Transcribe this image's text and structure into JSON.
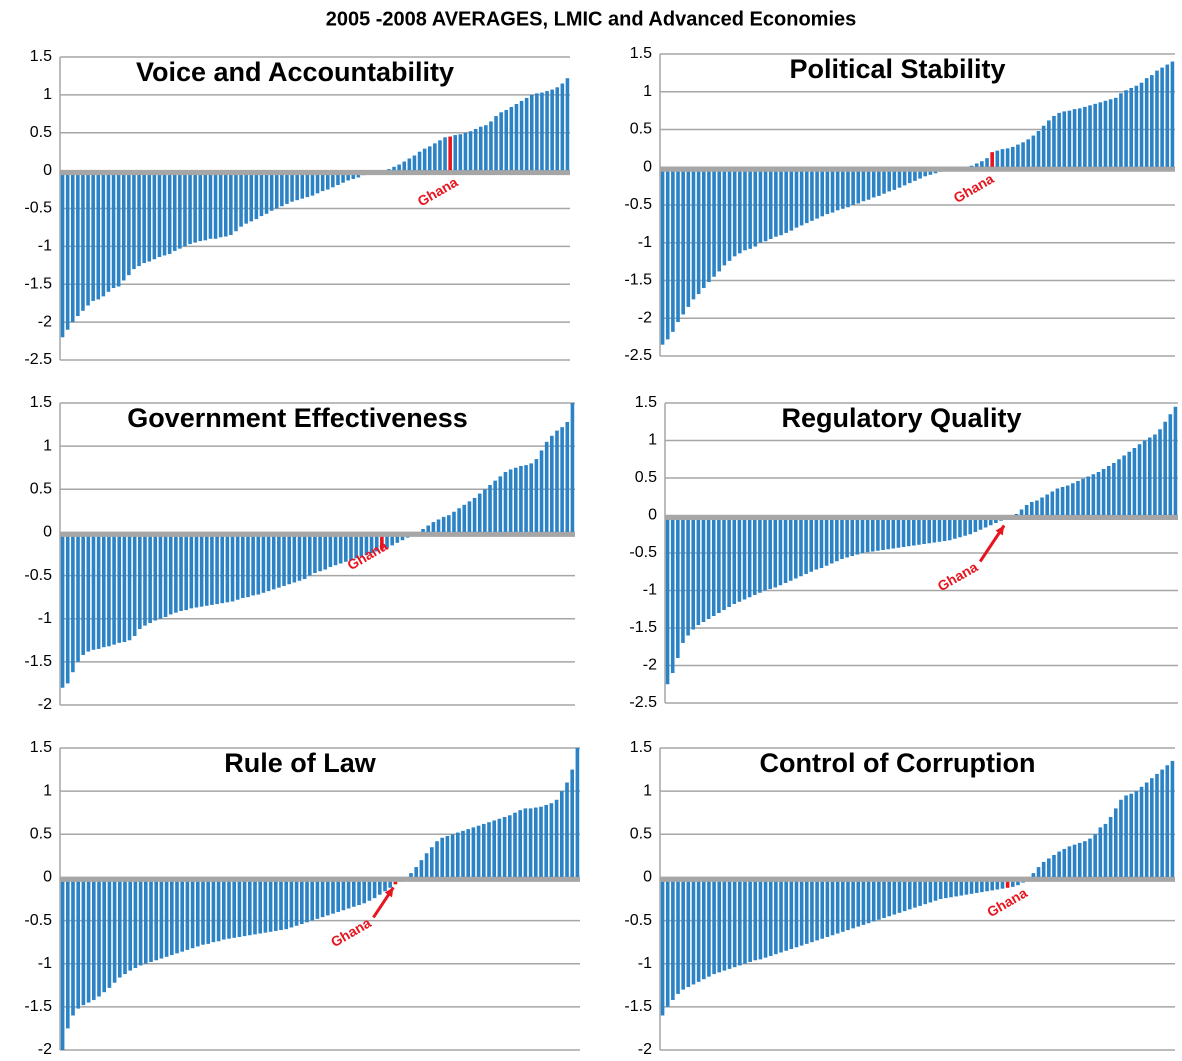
{
  "title": "2005 -2008 AVERAGES, LMIC and Advanced Economies",
  "chart_data": [
    {
      "type": "bar",
      "title": "Voice and Accountability",
      "color": "#2b83c6",
      "grid": true,
      "ylim": [
        -2.5,
        1.5
      ],
      "yticks": [
        1.5,
        1,
        0.5,
        0,
        -0.5,
        -1,
        -1.5,
        -2,
        -2.5
      ],
      "highlight": {
        "index": 76,
        "color": "#e8141e",
        "label": "Ghana"
      },
      "values": [
        -2.2,
        -2.1,
        -2.0,
        -1.92,
        -1.85,
        -1.78,
        -1.72,
        -1.7,
        -1.66,
        -1.6,
        -1.55,
        -1.53,
        -1.45,
        -1.38,
        -1.3,
        -1.26,
        -1.22,
        -1.2,
        -1.17,
        -1.14,
        -1.12,
        -1.1,
        -1.06,
        -1.03,
        -1.0,
        -0.97,
        -0.95,
        -0.93,
        -0.92,
        -0.9,
        -0.9,
        -0.88,
        -0.87,
        -0.85,
        -0.8,
        -0.74,
        -0.7,
        -0.67,
        -0.64,
        -0.6,
        -0.57,
        -0.53,
        -0.5,
        -0.47,
        -0.44,
        -0.41,
        -0.39,
        -0.37,
        -0.35,
        -0.33,
        -0.3,
        -0.27,
        -0.25,
        -0.22,
        -0.19,
        -0.16,
        -0.13,
        -0.11,
        -0.09,
        -0.06,
        -0.04,
        -0.03,
        -0.02,
        -0.01,
        0.02,
        0.05,
        0.08,
        0.12,
        0.16,
        0.2,
        0.25,
        0.29,
        0.32,
        0.36,
        0.4,
        0.44,
        0.45,
        0.47,
        0.48,
        0.5,
        0.52,
        0.55,
        0.58,
        0.6,
        0.65,
        0.72,
        0.77,
        0.8,
        0.84,
        0.88,
        0.92,
        0.96,
        1.0,
        1.02,
        1.03,
        1.05,
        1.07,
        1.1,
        1.15,
        1.22
      ]
    },
    {
      "type": "bar",
      "title": "Political Stability",
      "color": "#2b83c6",
      "grid": true,
      "ylim": [
        -2.5,
        1.5
      ],
      "yticks": [
        1.5,
        1,
        0.5,
        0,
        -0.5,
        -1,
        -1.5,
        -2,
        -2.5
      ],
      "highlight": {
        "index": 64,
        "color": "#e8141e",
        "label": "Ghana"
      },
      "values": [
        -2.35,
        -2.28,
        -2.18,
        -2.05,
        -1.95,
        -1.85,
        -1.75,
        -1.68,
        -1.6,
        -1.52,
        -1.45,
        -1.38,
        -1.3,
        -1.24,
        -1.18,
        -1.14,
        -1.1,
        -1.08,
        -1.05,
        -1.0,
        -0.98,
        -0.95,
        -0.92,
        -0.9,
        -0.87,
        -0.84,
        -0.8,
        -0.77,
        -0.74,
        -0.71,
        -0.68,
        -0.65,
        -0.62,
        -0.6,
        -0.57,
        -0.55,
        -0.53,
        -0.5,
        -0.48,
        -0.45,
        -0.43,
        -0.4,
        -0.38,
        -0.35,
        -0.32,
        -0.3,
        -0.27,
        -0.24,
        -0.21,
        -0.18,
        -0.15,
        -0.12,
        -0.1,
        -0.08,
        -0.06,
        -0.05,
        -0.04,
        -0.03,
        -0.02,
        -0.01,
        0.02,
        0.05,
        0.08,
        0.12,
        0.2,
        0.22,
        0.24,
        0.25,
        0.27,
        0.3,
        0.33,
        0.37,
        0.42,
        0.48,
        0.55,
        0.62,
        0.68,
        0.72,
        0.74,
        0.75,
        0.77,
        0.78,
        0.8,
        0.82,
        0.84,
        0.86,
        0.88,
        0.9,
        0.92,
        0.98,
        1.02,
        1.05,
        1.08,
        1.12,
        1.18,
        1.22,
        1.28,
        1.32,
        1.36,
        1.4
      ]
    },
    {
      "type": "bar",
      "title": "Government Effectiveness",
      "color": "#2b83c6",
      "grid": true,
      "ylim": [
        -2,
        1.5
      ],
      "yticks": [
        1.5,
        1,
        0.5,
        0,
        -0.5,
        -1,
        -1.5,
        -2
      ],
      "highlight": {
        "index": 62,
        "color": "#e8141e",
        "label": "Ghana"
      },
      "values": [
        -1.8,
        -1.75,
        -1.62,
        -1.5,
        -1.42,
        -1.38,
        -1.36,
        -1.35,
        -1.33,
        -1.32,
        -1.3,
        -1.28,
        -1.27,
        -1.25,
        -1.2,
        -1.12,
        -1.08,
        -1.05,
        -1.02,
        -1.0,
        -0.98,
        -0.95,
        -0.93,
        -0.91,
        -0.9,
        -0.88,
        -0.87,
        -0.86,
        -0.85,
        -0.84,
        -0.83,
        -0.82,
        -0.81,
        -0.8,
        -0.78,
        -0.76,
        -0.75,
        -0.73,
        -0.72,
        -0.7,
        -0.68,
        -0.66,
        -0.64,
        -0.62,
        -0.6,
        -0.58,
        -0.56,
        -0.54,
        -0.5,
        -0.47,
        -0.45,
        -0.43,
        -0.4,
        -0.38,
        -0.36,
        -0.34,
        -0.32,
        -0.3,
        -0.28,
        -0.26,
        -0.24,
        -0.22,
        -0.2,
        -0.18,
        -0.15,
        -0.12,
        -0.09,
        -0.06,
        -0.03,
        0.0,
        0.04,
        0.08,
        0.12,
        0.15,
        0.18,
        0.2,
        0.24,
        0.28,
        0.32,
        0.36,
        0.4,
        0.45,
        0.5,
        0.55,
        0.6,
        0.65,
        0.7,
        0.73,
        0.75,
        0.77,
        0.78,
        0.8,
        0.85,
        0.95,
        1.05,
        1.12,
        1.18,
        1.22,
        1.28,
        1.5
      ]
    },
    {
      "type": "bar",
      "title": "Regulatory  Quality",
      "color": "#2b83c6",
      "grid": true,
      "ylim": [
        -2.5,
        1.5
      ],
      "yticks": [
        1.5,
        1,
        0.5,
        0,
        -0.5,
        -1,
        -1.5,
        -2,
        -2.5
      ],
      "highlight": {
        "index": 66,
        "color": "#e8141e",
        "label": "Ghana"
      },
      "values": [
        -2.25,
        -2.1,
        -1.9,
        -1.7,
        -1.6,
        -1.52,
        -1.46,
        -1.42,
        -1.38,
        -1.34,
        -1.3,
        -1.26,
        -1.22,
        -1.18,
        -1.15,
        -1.12,
        -1.09,
        -1.06,
        -1.03,
        -1.0,
        -0.98,
        -0.96,
        -0.93,
        -0.9,
        -0.87,
        -0.84,
        -0.81,
        -0.78,
        -0.75,
        -0.72,
        -0.7,
        -0.67,
        -0.64,
        -0.61,
        -0.58,
        -0.56,
        -0.54,
        -0.52,
        -0.5,
        -0.49,
        -0.48,
        -0.47,
        -0.46,
        -0.45,
        -0.44,
        -0.43,
        -0.42,
        -0.41,
        -0.4,
        -0.39,
        -0.38,
        -0.37,
        -0.36,
        -0.35,
        -0.34,
        -0.33,
        -0.31,
        -0.29,
        -0.27,
        -0.25,
        -0.22,
        -0.19,
        -0.16,
        -0.13,
        -0.1,
        -0.07,
        -0.05,
        -0.03,
        0.02,
        0.08,
        0.14,
        0.18,
        0.2,
        0.24,
        0.28,
        0.32,
        0.36,
        0.38,
        0.4,
        0.43,
        0.46,
        0.49,
        0.52,
        0.55,
        0.58,
        0.62,
        0.66,
        0.7,
        0.75,
        0.8,
        0.85,
        0.9,
        0.95,
        1.0,
        1.04,
        1.08,
        1.15,
        1.25,
        1.35,
        1.45
      ]
    },
    {
      "type": "bar",
      "title": "Rule of Law",
      "color": "#2b83c6",
      "grid": true,
      "ylim": [
        -2,
        1.5
      ],
      "yticks": [
        1.5,
        1,
        0.5,
        0,
        -0.5,
        -1,
        -1.5,
        -2
      ],
      "highlight": {
        "index": 64,
        "color": "#e8141e",
        "label": "Ghana"
      },
      "values": [
        -2.0,
        -1.75,
        -1.6,
        -1.52,
        -1.48,
        -1.45,
        -1.42,
        -1.38,
        -1.33,
        -1.28,
        -1.22,
        -1.16,
        -1.12,
        -1.08,
        -1.05,
        -1.02,
        -1.0,
        -0.98,
        -0.96,
        -0.94,
        -0.92,
        -0.9,
        -0.88,
        -0.86,
        -0.84,
        -0.82,
        -0.8,
        -0.78,
        -0.77,
        -0.75,
        -0.74,
        -0.72,
        -0.71,
        -0.7,
        -0.69,
        -0.68,
        -0.67,
        -0.66,
        -0.65,
        -0.64,
        -0.63,
        -0.62,
        -0.61,
        -0.6,
        -0.58,
        -0.56,
        -0.54,
        -0.52,
        -0.5,
        -0.48,
        -0.46,
        -0.44,
        -0.42,
        -0.4,
        -0.38,
        -0.36,
        -0.34,
        -0.32,
        -0.3,
        -0.27,
        -0.24,
        -0.2,
        -0.16,
        -0.12,
        -0.08,
        -0.05,
        -0.02,
        0.05,
        0.12,
        0.2,
        0.28,
        0.35,
        0.42,
        0.46,
        0.48,
        0.5,
        0.52,
        0.54,
        0.56,
        0.58,
        0.6,
        0.62,
        0.64,
        0.66,
        0.68,
        0.7,
        0.72,
        0.75,
        0.78,
        0.8,
        0.8,
        0.81,
        0.82,
        0.84,
        0.86,
        0.9,
        1.0,
        1.1,
        1.25,
        1.5
      ]
    },
    {
      "type": "bar",
      "title": "Control of Corruption",
      "color": "#2b83c6",
      "grid": true,
      "ylim": [
        -2,
        1.5
      ],
      "yticks": [
        1.5,
        1,
        0.5,
        0,
        -0.5,
        -1,
        -1.5,
        -2
      ],
      "highlight": {
        "index": 67,
        "color": "#e8141e",
        "label": "Ghana"
      },
      "values": [
        -1.6,
        -1.5,
        -1.42,
        -1.35,
        -1.3,
        -1.27,
        -1.24,
        -1.21,
        -1.18,
        -1.15,
        -1.12,
        -1.1,
        -1.08,
        -1.06,
        -1.04,
        -1.02,
        -1.0,
        -0.98,
        -0.96,
        -0.95,
        -0.93,
        -0.91,
        -0.89,
        -0.87,
        -0.85,
        -0.83,
        -0.81,
        -0.79,
        -0.77,
        -0.75,
        -0.73,
        -0.71,
        -0.69,
        -0.67,
        -0.65,
        -0.63,
        -0.61,
        -0.59,
        -0.57,
        -0.55,
        -0.53,
        -0.51,
        -0.49,
        -0.47,
        -0.45,
        -0.43,
        -0.41,
        -0.39,
        -0.37,
        -0.35,
        -0.33,
        -0.31,
        -0.29,
        -0.27,
        -0.25,
        -0.24,
        -0.23,
        -0.22,
        -0.21,
        -0.2,
        -0.19,
        -0.18,
        -0.17,
        -0.16,
        -0.15,
        -0.14,
        -0.13,
        -0.12,
        -0.11,
        -0.09,
        -0.06,
        -0.03,
        0.05,
        0.12,
        0.18,
        0.22,
        0.26,
        0.3,
        0.33,
        0.36,
        0.38,
        0.4,
        0.42,
        0.45,
        0.5,
        0.58,
        0.62,
        0.7,
        0.8,
        0.9,
        0.95,
        0.97,
        1.0,
        1.05,
        1.1,
        1.15,
        1.2,
        1.25,
        1.3,
        1.35
      ]
    }
  ]
}
